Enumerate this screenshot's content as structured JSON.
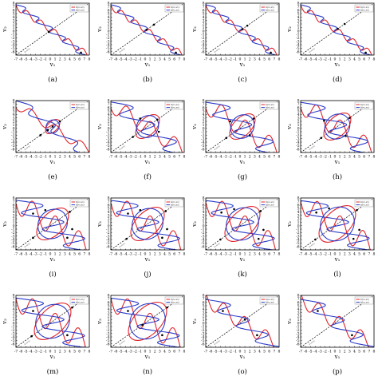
{
  "figure": {
    "xlabel": "v₁",
    "ylabel": "v₂",
    "legend": [
      "f₁(v₁,v₂)",
      "f₂(v₁,v₂)"
    ],
    "diag_label": "v₁=v₂",
    "colors": {
      "f1": "#e0242a",
      "f2": "#2b3cc8",
      "diag": "#000000",
      "point": "#000000"
    }
  },
  "chart_data": [
    {
      "label": "(a)",
      "type": "line",
      "legend_position": "top-right",
      "xlim": [
        -7,
        8
      ],
      "ylim": [
        -7,
        8
      ],
      "xticks": [
        -7,
        -6,
        -5,
        -4,
        -3,
        -2,
        -1,
        0,
        1,
        2,
        3,
        4,
        5,
        6,
        7,
        8
      ],
      "yticks": [
        -6,
        -5,
        -4,
        -3,
        -2,
        -1,
        0,
        1,
        2,
        3,
        4,
        5,
        6,
        7,
        8
      ],
      "shape": "two-curves-intersect",
      "intersections": [
        [
          -0.3,
          -0.3
        ],
        [
          6.3,
          -6.3
        ]
      ]
    },
    {
      "label": "(b)",
      "type": "line",
      "legend_position": "top-right",
      "xlim": [
        -7,
        8
      ],
      "ylim": [
        -7,
        8
      ],
      "xticks": [
        -7,
        -6,
        -5,
        -4,
        -3,
        -2,
        -1,
        0,
        1,
        2,
        3,
        4,
        5,
        6,
        7,
        8
      ],
      "yticks": [
        -6,
        -5,
        -4,
        -3,
        -2,
        -1,
        0,
        1,
        2,
        3,
        4,
        5,
        6,
        7,
        8
      ],
      "shape": "two-curves-intersect",
      "intersections": [
        [
          0.3,
          0.3
        ],
        [
          1.8,
          1.8
        ],
        [
          6.3,
          -6.3
        ]
      ]
    },
    {
      "label": "(c)",
      "type": "line",
      "legend_position": "top-right",
      "xlim": [
        -7,
        8
      ],
      "ylim": [
        -7,
        8
      ],
      "xticks": [
        -7,
        -6,
        -5,
        -4,
        -3,
        -2,
        -1,
        0,
        1,
        2,
        3,
        4,
        5,
        6,
        7,
        8
      ],
      "yticks": [
        -6,
        -5,
        -4,
        -3,
        -2,
        -1,
        0,
        1,
        2,
        3,
        4,
        5,
        6,
        7,
        8
      ],
      "shape": "two-curves-intersect",
      "intersections": [
        [
          0.5,
          0.5
        ],
        [
          1.5,
          1.5
        ],
        [
          6.3,
          -6.3
        ]
      ]
    },
    {
      "label": "(d)",
      "type": "line",
      "legend_position": "top-right",
      "xlim": [
        -7,
        8
      ],
      "ylim": [
        -7,
        8
      ],
      "xticks": [
        -7,
        -6,
        -5,
        -4,
        -3,
        -2,
        -1,
        0,
        1,
        2,
        3,
        4,
        5,
        6,
        7,
        8
      ],
      "yticks": [
        -6,
        -5,
        -4,
        -3,
        -2,
        -1,
        0,
        1,
        2,
        3,
        4,
        5,
        6,
        7,
        8
      ],
      "shape": "two-curves-intersect",
      "intersections": [
        [
          0.6,
          0.6
        ],
        [
          2.0,
          2.0
        ],
        [
          6.3,
          -6.3
        ]
      ]
    },
    {
      "label": "(e)",
      "type": "line",
      "legend_position": "top-right",
      "xlim": [
        -7,
        8
      ],
      "ylim": [
        -7,
        8
      ],
      "xticks": [
        -7,
        -6,
        -5,
        -4,
        -3,
        -2,
        -1,
        0,
        1,
        2,
        3,
        4,
        5,
        6,
        7,
        8
      ],
      "yticks": [
        -6,
        -5,
        -4,
        -3,
        -2,
        -1,
        0,
        1,
        2,
        3,
        4,
        5,
        6,
        7,
        8
      ],
      "shape": "small-loop",
      "loop_radius": 1.8,
      "intersections": [
        [
          -2.0,
          -2.0
        ],
        [
          -0.5,
          -0.5
        ],
        [
          0.5,
          0.5
        ],
        [
          2.0,
          2.0
        ]
      ]
    },
    {
      "label": "(f)",
      "type": "line",
      "legend_position": "top-right",
      "xlim": [
        -7,
        8
      ],
      "ylim": [
        -7,
        8
      ],
      "xticks": [
        -7,
        -6,
        -5,
        -4,
        -3,
        -2,
        -1,
        0,
        1,
        2,
        3,
        4,
        5,
        6,
        7,
        8
      ],
      "yticks": [
        -6,
        -5,
        -4,
        -3,
        -2,
        -1,
        0,
        1,
        2,
        3,
        4,
        5,
        6,
        7,
        8
      ],
      "shape": "loop",
      "loop_radius": 3.0,
      "intersections": [
        [
          -2.5,
          -2.5
        ],
        [
          2.5,
          2.5
        ],
        [
          -1.0,
          2.8
        ],
        [
          2.8,
          -1.0
        ]
      ]
    },
    {
      "label": "(g)",
      "type": "line",
      "legend_position": "top-right",
      "xlim": [
        -7,
        8
      ],
      "ylim": [
        -7,
        8
      ],
      "xticks": [
        -7,
        -6,
        -5,
        -4,
        -3,
        -2,
        -1,
        0,
        1,
        2,
        3,
        4,
        5,
        6,
        7,
        8
      ],
      "yticks": [
        -6,
        -5,
        -4,
        -3,
        -2,
        -1,
        0,
        1,
        2,
        3,
        4,
        5,
        6,
        7,
        8
      ],
      "shape": "double-loop",
      "loop_radius": 3.2,
      "intersections": [
        [
          -2.8,
          -2.8
        ],
        [
          2.8,
          2.8
        ],
        [
          -2.0,
          2.0
        ],
        [
          2.0,
          -2.0
        ]
      ]
    },
    {
      "label": "(h)",
      "type": "line",
      "legend_position": "top-right",
      "xlim": [
        -7,
        8
      ],
      "ylim": [
        -7,
        8
      ],
      "xticks": [
        -7,
        -6,
        -5,
        -4,
        -3,
        -2,
        -1,
        0,
        1,
        2,
        3,
        4,
        5,
        6,
        7,
        8
      ],
      "yticks": [
        -6,
        -5,
        -4,
        -3,
        -2,
        -1,
        0,
        1,
        2,
        3,
        4,
        5,
        6,
        7,
        8
      ],
      "shape": "double-loop",
      "loop_radius": 3.4,
      "intersections": [
        [
          -2.8,
          -2.8
        ],
        [
          3.0,
          3.0
        ],
        [
          -2.2,
          2.2
        ],
        [
          2.2,
          -2.2
        ]
      ]
    },
    {
      "label": "(i)",
      "type": "line",
      "legend_position": "top-right",
      "xlim": [
        -7,
        8
      ],
      "ylim": [
        -7,
        8
      ],
      "xticks": [
        -7,
        -6,
        -5,
        -4,
        -3,
        -2,
        -1,
        0,
        1,
        2,
        3,
        4,
        5,
        6,
        7,
        8
      ],
      "yticks": [
        -6,
        -5,
        -4,
        -3,
        -2,
        -1,
        0,
        1,
        2,
        3,
        4,
        5,
        6,
        7,
        8
      ],
      "shape": "flower",
      "loop_radius": 4.0,
      "intersections": [
        [
          -3.5,
          -3.5
        ],
        [
          4.0,
          4.0
        ],
        [
          -3.5,
          3.5
        ],
        [
          3.5,
          -3.5
        ],
        [
          -1.0,
          4.5
        ],
        [
          4.5,
          -1.0
        ]
      ]
    },
    {
      "label": "(j)",
      "type": "line",
      "legend_position": "top-right",
      "xlim": [
        -7,
        8
      ],
      "ylim": [
        -7,
        8
      ],
      "xticks": [
        -7,
        -6,
        -5,
        -4,
        -3,
        -2,
        -1,
        0,
        1,
        2,
        3,
        4,
        5,
        6,
        7,
        8
      ],
      "yticks": [
        -6,
        -5,
        -4,
        -3,
        -2,
        -1,
        0,
        1,
        2,
        3,
        4,
        5,
        6,
        7,
        8
      ],
      "shape": "flower",
      "loop_radius": 4.2,
      "intersections": [
        [
          -3.8,
          -3.8
        ],
        [
          4.2,
          4.2
        ],
        [
          -3.5,
          3.5
        ],
        [
          3.5,
          -3.5
        ],
        [
          -1.0,
          4.5
        ],
        [
          4.5,
          -1.0
        ]
      ]
    },
    {
      "label": "(k)",
      "type": "line",
      "legend_position": "top-right",
      "xlim": [
        -7,
        8
      ],
      "ylim": [
        -7,
        8
      ],
      "xticks": [
        -7,
        -6,
        -5,
        -4,
        -3,
        -2,
        -1,
        0,
        1,
        2,
        3,
        4,
        5,
        6,
        7,
        8
      ],
      "yticks": [
        -6,
        -5,
        -4,
        -3,
        -2,
        -1,
        0,
        1,
        2,
        3,
        4,
        5,
        6,
        7,
        8
      ],
      "shape": "flower",
      "loop_radius": 4.4,
      "intersections": [
        [
          -4.0,
          -4.0
        ],
        [
          4.2,
          4.2
        ],
        [
          -3.8,
          3.8
        ],
        [
          3.8,
          -3.8
        ],
        [
          -1.2,
          4.8
        ],
        [
          4.8,
          -1.2
        ]
      ]
    },
    {
      "label": "(l)",
      "type": "line",
      "legend_position": "top-right",
      "xlim": [
        -7,
        8
      ],
      "ylim": [
        -7,
        8
      ],
      "xticks": [
        -7,
        -6,
        -5,
        -4,
        -3,
        -2,
        -1,
        0,
        1,
        2,
        3,
        4,
        5,
        6,
        7,
        8
      ],
      "yticks": [
        -6,
        -5,
        -4,
        -3,
        -2,
        -1,
        0,
        1,
        2,
        3,
        4,
        5,
        6,
        7,
        8
      ],
      "shape": "flower",
      "loop_radius": 4.6,
      "intersections": [
        [
          -4.0,
          -4.0
        ],
        [
          4.5,
          4.5
        ],
        [
          -3.8,
          3.8
        ],
        [
          3.8,
          -3.8
        ],
        [
          -1.2,
          5.0
        ],
        [
          5.0,
          -1.2
        ]
      ]
    },
    {
      "label": "(m)",
      "type": "line",
      "legend_position": "top-right",
      "xlim": [
        -7,
        8
      ],
      "ylim": [
        -7,
        8
      ],
      "xticks": [
        -7,
        -6,
        -5,
        -4,
        -3,
        -2,
        -1,
        0,
        1,
        2,
        3,
        4,
        5,
        6,
        7,
        8
      ],
      "yticks": [
        -6,
        -5,
        -4,
        -3,
        -2,
        -1,
        0,
        1,
        2,
        3,
        4,
        5,
        6,
        7,
        8
      ],
      "shape": "open-flower",
      "loop_radius": 4.6,
      "intersections": [
        [
          -3.8,
          -3.8
        ],
        [
          4.5,
          4.5
        ],
        [
          -3.5,
          3.5
        ],
        [
          3.5,
          -3.5
        ]
      ]
    },
    {
      "label": "(n)",
      "type": "line",
      "legend_position": "top-right",
      "xlim": [
        -7,
        8
      ],
      "ylim": [
        -7,
        8
      ],
      "xticks": [
        -7,
        -6,
        -5,
        -4,
        -3,
        -2,
        -1,
        0,
        1,
        2,
        3,
        4,
        5,
        6,
        7,
        8
      ],
      "yticks": [
        -6,
        -5,
        -4,
        -3,
        -2,
        -1,
        0,
        1,
        2,
        3,
        4,
        5,
        6,
        7,
        8
      ],
      "shape": "open-flower",
      "loop_radius": 4.8,
      "intersections": [
        [
          -0.5,
          -0.5
        ],
        [
          4.5,
          4.5
        ],
        [
          -3.5,
          3.5
        ],
        [
          3.5,
          -3.5
        ]
      ]
    },
    {
      "label": "(o)",
      "type": "line",
      "legend_position": "top-right",
      "xlim": [
        -7,
        8
      ],
      "ylim": [
        -7,
        8
      ],
      "xticks": [
        -7,
        -6,
        -5,
        -4,
        -3,
        -2,
        -1,
        0,
        1,
        2,
        3,
        4,
        5,
        6,
        7,
        8
      ],
      "yticks": [
        -6,
        -5,
        -4,
        -3,
        -2,
        -1,
        0,
        1,
        2,
        3,
        4,
        5,
        6,
        7,
        8
      ],
      "shape": "waves",
      "loop_radius": 5.0,
      "intersections": [
        [
          -3.5,
          3.5
        ],
        [
          3.5,
          -3.5
        ],
        [
          1.0,
          1.0
        ]
      ]
    },
    {
      "label": "(p)",
      "type": "line",
      "legend_position": "top-right",
      "xlim": [
        -7,
        8
      ],
      "ylim": [
        -7,
        8
      ],
      "xticks": [
        -7,
        -6,
        -5,
        -4,
        -3,
        -2,
        -1,
        0,
        1,
        2,
        3,
        4,
        5,
        6,
        7,
        8
      ],
      "yticks": [
        -6,
        -5,
        -4,
        -3,
        -2,
        -1,
        0,
        1,
        2,
        3,
        4,
        5,
        6,
        7,
        8
      ],
      "shape": "waves",
      "loop_radius": 5.2,
      "intersections": [
        [
          -3.5,
          3.5
        ],
        [
          3.5,
          -3.5
        ]
      ]
    }
  ]
}
